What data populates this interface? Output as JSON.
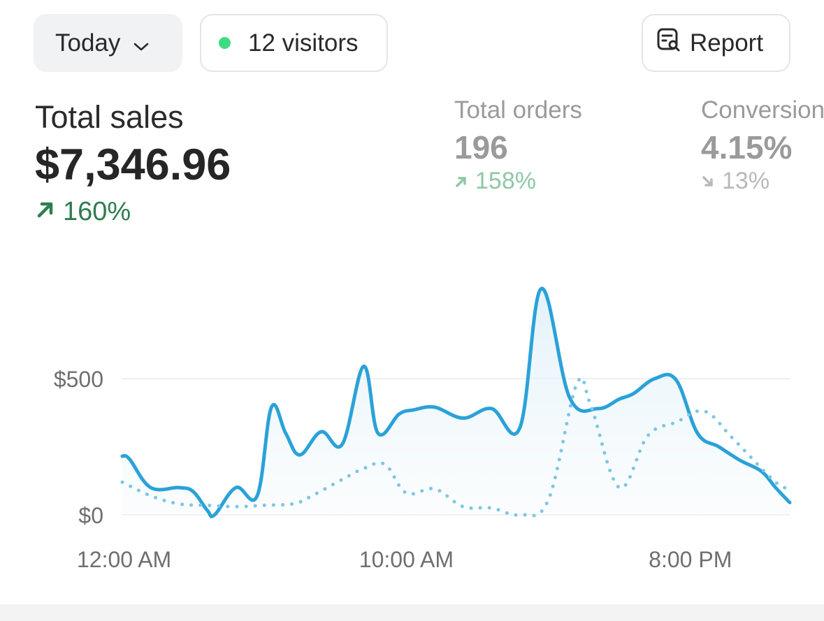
{
  "controls": {
    "period_label": "Today",
    "visitors_label": "12 visitors",
    "report_label": "Report",
    "visitors_dot_color": "#3ddc84"
  },
  "metrics": {
    "total_sales": {
      "label": "Total sales",
      "value": "$7,346.96",
      "change": "160%",
      "direction": "up"
    },
    "total_orders": {
      "label": "Total orders",
      "value": "196",
      "change": "158%",
      "direction": "up"
    },
    "conversion": {
      "label": "Conversion",
      "value": "4.15%",
      "change": "13%",
      "direction": "down"
    }
  },
  "chart_data": {
    "type": "area",
    "x_tick_labels": [
      "12:00 AM",
      "10:00 AM",
      "8:00 PM"
    ],
    "y_tick_labels": [
      "$0",
      "$500"
    ],
    "ylim": [
      0,
      850
    ],
    "xlim": [
      0,
      23.5
    ],
    "grid": true,
    "series": [
      {
        "style": "solid",
        "color": "#2aa2d8",
        "x": [
          0,
          0.25,
          1,
          2,
          2.5,
          3,
          3.25,
          4,
          4.75,
          5.25,
          5.75,
          6.25,
          7,
          7.75,
          8.5,
          9,
          9.75,
          10.25,
          11,
          12,
          13,
          14,
          14.75,
          15.75,
          16.75,
          17.5,
          18,
          18.75,
          19.5,
          20.25,
          21,
          21.75,
          22.5,
          23,
          23.5
        ],
        "y": [
          215,
          205,
          100,
          100,
          85,
          15,
          0,
          100,
          70,
          395,
          300,
          220,
          305,
          260,
          545,
          300,
          370,
          385,
          395,
          355,
          390,
          320,
          830,
          430,
          390,
          425,
          445,
          500,
          495,
          300,
          250,
          200,
          160,
          100,
          45
        ]
      },
      {
        "style": "dotted",
        "color": "#7fc6e3",
        "x": [
          0,
          1,
          2,
          3,
          4,
          5,
          6,
          6.5,
          7.75,
          8.5,
          9.25,
          10,
          11,
          12,
          13,
          14,
          15,
          16,
          16.5,
          17.5,
          18.5,
          19.5,
          20.5,
          21.5,
          23,
          23.5
        ],
        "y": [
          120,
          70,
          40,
          35,
          30,
          35,
          40,
          60,
          130,
          170,
          185,
          80,
          95,
          30,
          25,
          0,
          55,
          480,
          400,
          100,
          290,
          340,
          380,
          280,
          120,
          100
        ]
      }
    ]
  }
}
